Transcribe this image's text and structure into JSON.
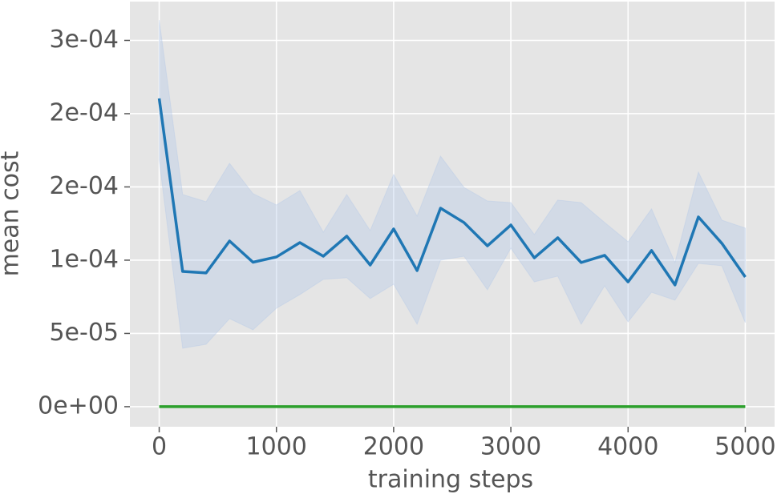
{
  "chart_data": {
    "type": "line",
    "xlabel": "training steps",
    "ylabel": "mean cost",
    "x": [
      0,
      200,
      400,
      600,
      800,
      1000,
      1200,
      1400,
      1600,
      1800,
      2000,
      2200,
      2400,
      2600,
      2800,
      3000,
      3200,
      3400,
      3600,
      3800,
      4000,
      4200,
      4400,
      4600,
      4800,
      5000
    ],
    "series": [
      {
        "color": "#1f77b4",
        "band_color": "#aec7e8",
        "values": [
          0.0002104,
          9.23e-05,
          9.13e-05,
          0.0001131,
          9.86e-05,
          0.0001022,
          0.000112,
          0.0001027,
          0.0001164,
          9.67e-05,
          0.0001213,
          9.29e-05,
          0.0001355,
          0.0001257,
          0.0001098,
          0.000124,
          0.0001016,
          0.0001153,
          9.84e-05,
          0.0001033,
          8.52e-05,
          0.0001066,
          8.31e-05,
          0.0001295,
          0.0001115,
          8.85e-05
        ],
        "lower": [
          0.0001683,
          3.99e-05,
          4.26e-05,
          6.01e-05,
          5.25e-05,
          6.72e-05,
          7.65e-05,
          8.69e-05,
          8.8e-05,
          7.38e-05,
          8.36e-05,
          5.63e-05,
          0.0001,
          0.0001027,
          7.98e-05,
          0.0001082,
          8.52e-05,
          8.91e-05,
          5.63e-05,
          8.25e-05,
          5.79e-05,
          7.81e-05,
          7.27e-05,
          9.78e-05,
          9.62e-05,
          5.74e-05
        ],
        "upper": [
          0.0002639,
          0.0001448,
          0.0001399,
          0.0001661,
          0.0001454,
          0.0001377,
          0.0001475,
          0.0001191,
          0.0001448,
          0.0001202,
          0.0001585,
          0.0001301,
          0.000171,
          0.0001497,
          0.0001404,
          0.0001393,
          0.0001175,
          0.000141,
          0.0001393,
          0.0001257,
          0.0001126,
          0.000135,
          9.84e-05,
          0.0001601,
          0.0001273,
          0.0001219
        ]
      },
      {
        "color": "#2ca02c",
        "values": [
          0,
          0,
          0,
          0,
          0,
          0,
          0,
          0,
          0,
          0,
          0,
          0,
          0,
          0,
          0,
          0,
          0,
          0,
          0,
          0,
          0,
          0,
          0,
          0,
          0,
          0
        ]
      }
    ],
    "xlim": [
      -250,
      5250
    ],
    "xticks": [
      0,
      1000,
      2000,
      3000,
      4000,
      5000
    ],
    "ylim": [
      -1.37e-05,
      0.0002765
    ],
    "yticks": [
      {
        "value": 0,
        "label": "0e+00"
      },
      {
        "value": 5e-05,
        "label": "5e-05"
      },
      {
        "value": 0.0001,
        "label": "1e-04"
      },
      {
        "value": 0.00015,
        "label": "2e-04"
      },
      {
        "value": 0.0002,
        "label": "2e-04"
      },
      {
        "value": 0.00025,
        "label": "3e-04"
      }
    ],
    "grid": true
  }
}
